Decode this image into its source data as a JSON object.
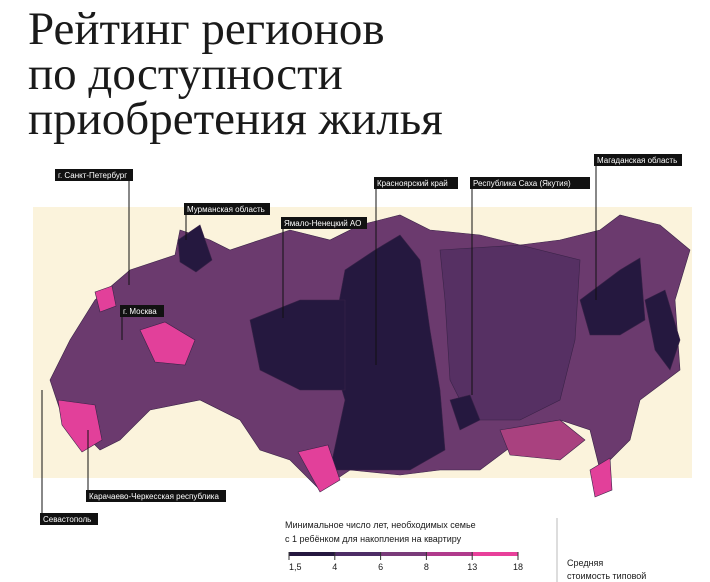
{
  "header": {
    "title_lines": [
      "Рейтинг регионов",
      "по доступности",
      "приобретения жилья"
    ]
  },
  "map": {
    "labels": [
      "г. Санкт-Петербург",
      "Мурманская область",
      "Ямало-Ненецкий АО",
      "Красноярский край",
      "Республика Саха (Якутия)",
      "Магаданская область",
      "г. Москва",
      "Карачаево-Черкесская республика",
      "Севастополь"
    ]
  },
  "legend": {
    "title_lines": [
      "Минимальное число лет, необходимых семье",
      "с 1 ребёнком для накопления на квартиру"
    ],
    "ticks": [
      {
        "value": 1.5,
        "label": "1,5"
      },
      4,
      6,
      8,
      13,
      18
    ],
    "colors": [
      "#25183f",
      "#4d2d66",
      "#7a3b7a",
      "#b03a8c",
      "#e8409a"
    ]
  },
  "note": {
    "lines": [
      "Средняя",
      "стоимость типовой"
    ]
  }
}
